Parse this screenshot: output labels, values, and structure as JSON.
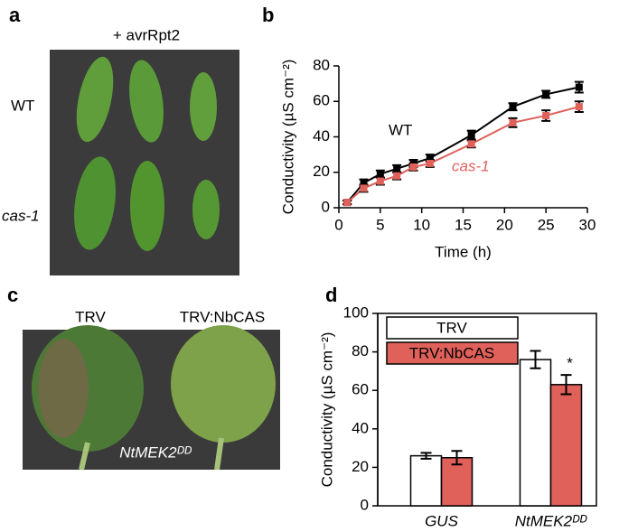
{
  "panel_labels": [
    "a",
    "b",
    "c",
    "d"
  ],
  "photo_a": {
    "header": "+ avrRpt2",
    "rows": [
      "WT",
      "cas-1"
    ]
  },
  "photo_c": {
    "columns": [
      "TRV",
      "TRV:NbCAS"
    ],
    "caption": "NtMEK2ᴰᴰ"
  },
  "chart_data": [
    {
      "type": "line",
      "x_label": "Time (h)",
      "y_label": "Conductivity  (µS cm⁻²)",
      "x": [
        1,
        3,
        5,
        7,
        9,
        11,
        16,
        21,
        25,
        29
      ],
      "series": [
        {
          "name": "WT",
          "color": "#000000",
          "values": [
            3,
            14,
            19,
            22,
            25,
            28,
            41,
            57,
            64,
            68
          ],
          "errors": [
            1,
            2,
            2,
            2,
            2,
            2,
            2.5,
            2,
            2,
            3
          ]
        },
        {
          "name": "cas-1",
          "color": "#e0605a",
          "values": [
            3,
            11,
            15,
            18,
            23,
            25,
            36,
            48,
            52,
            57
          ],
          "errors": [
            1,
            2,
            2,
            2,
            2,
            2,
            2,
            2.5,
            3,
            3
          ]
        }
      ],
      "xlim": [
        0,
        30
      ],
      "xticks": [
        0,
        5,
        10,
        15,
        20,
        25,
        30
      ],
      "ylim": [
        0,
        80
      ],
      "yticks": [
        0,
        20,
        40,
        60,
        80
      ]
    },
    {
      "type": "bar",
      "y_label": "Conductivity  (µS cm⁻²)",
      "categories": [
        "GUS",
        "NtMEK2ᴰᴰ"
      ],
      "series": [
        {
          "name": "TRV",
          "color": "#ffffff",
          "values": [
            26,
            76
          ],
          "errors": [
            1.5,
            4.5
          ]
        },
        {
          "name": "TRV:NbCAS",
          "color": "#e0605a",
          "values": [
            25,
            63
          ],
          "errors": [
            3.5,
            5
          ]
        }
      ],
      "annotation": "*",
      "ylim": [
        0,
        100
      ],
      "yticks": [
        0,
        20,
        40,
        60,
        80,
        100
      ]
    }
  ]
}
